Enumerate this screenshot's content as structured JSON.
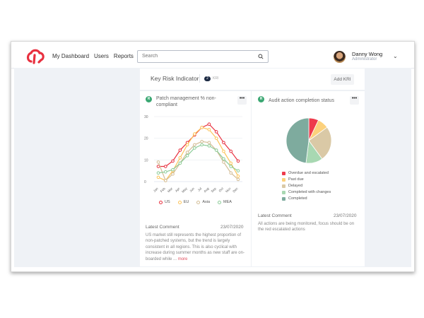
{
  "header": {
    "nav": [
      "My Dashboard",
      "Users",
      "Reports"
    ],
    "search_placeholder": "Search",
    "user": {
      "name": "Danny Wong",
      "role": "Administrator"
    }
  },
  "kri": {
    "title": "Key Risk Indicator",
    "count": "2",
    "count_unit": "KRI",
    "add_label": "Add KRI"
  },
  "cards": [
    {
      "status": "R",
      "title": "Patch management % non-compliant",
      "menu": "•••",
      "comment_label": "Latest Comment",
      "comment_date": "23/07/2020",
      "comment": "US market still represents the highest proportion of non-patched systems, but the trend is largely consistent in all regions. This is also cyclical with increase during summer months as new staff are on-boarded while ...",
      "more_link": "more"
    },
    {
      "status": "R",
      "title": "Audit action completion status",
      "menu": "•••",
      "comment_label": "Latest Comment",
      "comment_date": "23/07/2020",
      "comment": "All actions are being monitored, focus should be on the red escalated actions"
    }
  ],
  "colors": {
    "brand": "#e8303f",
    "status_green": "#3aa772"
  },
  "chart_data": [
    {
      "type": "line",
      "title": "Patch management % non-compliant",
      "categories": [
        "Jan",
        "Feb",
        "Mar",
        "Apr",
        "May",
        "Jun",
        "Jul",
        "Aug",
        "Sep",
        "Oct",
        "Nov",
        "Dec"
      ],
      "series": [
        {
          "name": "US",
          "color": "#e8303f",
          "values": [
            7,
            7,
            9.5,
            14.5,
            18,
            21.5,
            25,
            26.5,
            23,
            18,
            14,
            9.5
          ]
        },
        {
          "name": "EU",
          "color": "#fcc45a",
          "values": [
            2,
            0.5,
            5,
            11,
            17,
            22,
            25,
            24,
            20,
            14,
            8.5,
            2.5
          ]
        },
        {
          "name": "Asia",
          "color": "#d3bd96",
          "values": [
            9,
            0.5,
            3.5,
            8.5,
            13.5,
            17,
            18.5,
            18,
            14.5,
            9,
            4,
            1
          ]
        },
        {
          "name": "MEA",
          "color": "#8ccc98",
          "values": [
            4,
            4.5,
            5.5,
            8.5,
            12,
            15.5,
            17,
            16.5,
            14.5,
            10.5,
            7,
            5
          ]
        }
      ],
      "yticks": [
        0,
        10,
        20,
        30
      ],
      "ylim": [
        0,
        30
      ],
      "legend_position": "bottom",
      "grid": true
    },
    {
      "type": "pie",
      "title": "Audit action completion status",
      "categories": [
        "Overdue and escalated",
        "Past due",
        "Delayed",
        "Completed with changes",
        "Completed"
      ],
      "values": [
        7,
        8,
        25,
        12,
        48
      ],
      "colors": [
        "#ee3b4c",
        "#fcd17c",
        "#dac9a6",
        "#a8d8b2",
        "#7eab9e"
      ],
      "legend_position": "bottom"
    }
  ]
}
